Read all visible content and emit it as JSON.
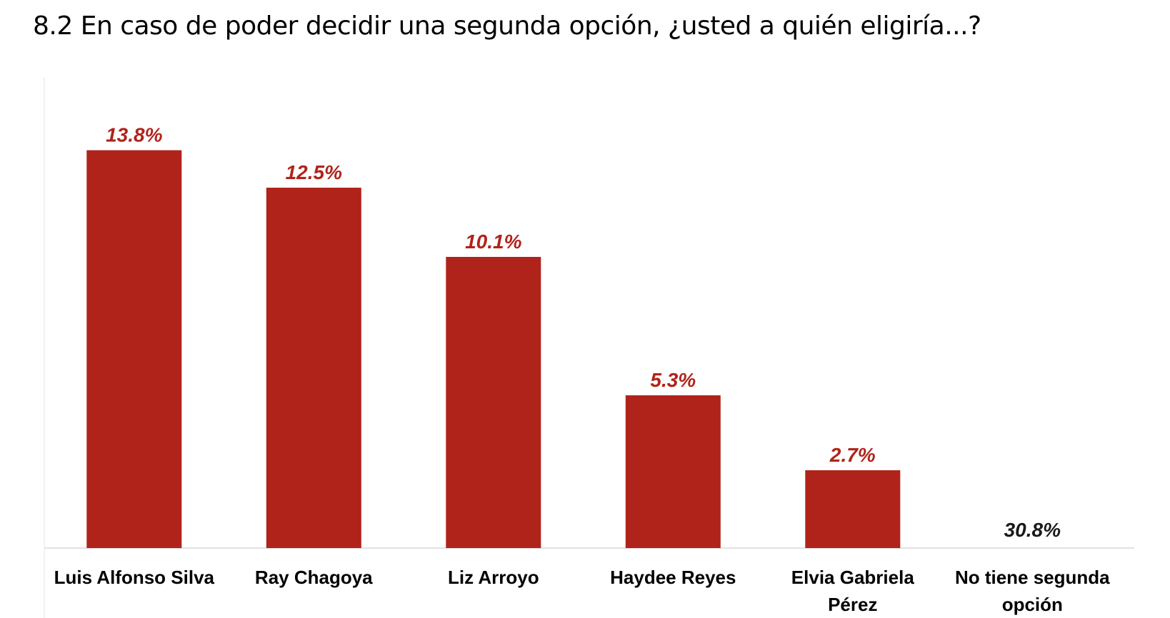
{
  "title": "8.2 En caso de poder decidir una segunda opción, ¿usted a quién eligiría...?",
  "chart_data": {
    "type": "bar",
    "categories": [
      "Luis Alfonso Silva",
      "Ray Chagoya",
      "Liz Arroyo",
      "Haydee Reyes",
      "Elvia Gabriela Pérez",
      "No tiene segunda opción"
    ],
    "category_lines": [
      [
        "Luis Alfonso Silva"
      ],
      [
        "Ray Chagoya"
      ],
      [
        "Liz Arroyo"
      ],
      [
        "Haydee Reyes"
      ],
      [
        "Elvia Gabriela",
        "Pérez"
      ],
      [
        "No tiene segunda",
        "opción"
      ]
    ],
    "values": [
      13.8,
      12.5,
      10.1,
      5.3,
      2.7,
      30.8
    ],
    "value_labels": [
      "13.8%",
      "12.5%",
      "10.1%",
      "5.3%",
      "2.7%",
      "30.8%"
    ],
    "bar_drawn": [
      true,
      true,
      true,
      true,
      true,
      false
    ],
    "bar_color": "#b0231a",
    "label_color": "#b0231a",
    "undrawn_label_color": "#1a1a1a",
    "axis_color": "#d9d9d9",
    "ylim": [
      0,
      15
    ],
    "grid": false,
    "legend": "none"
  }
}
